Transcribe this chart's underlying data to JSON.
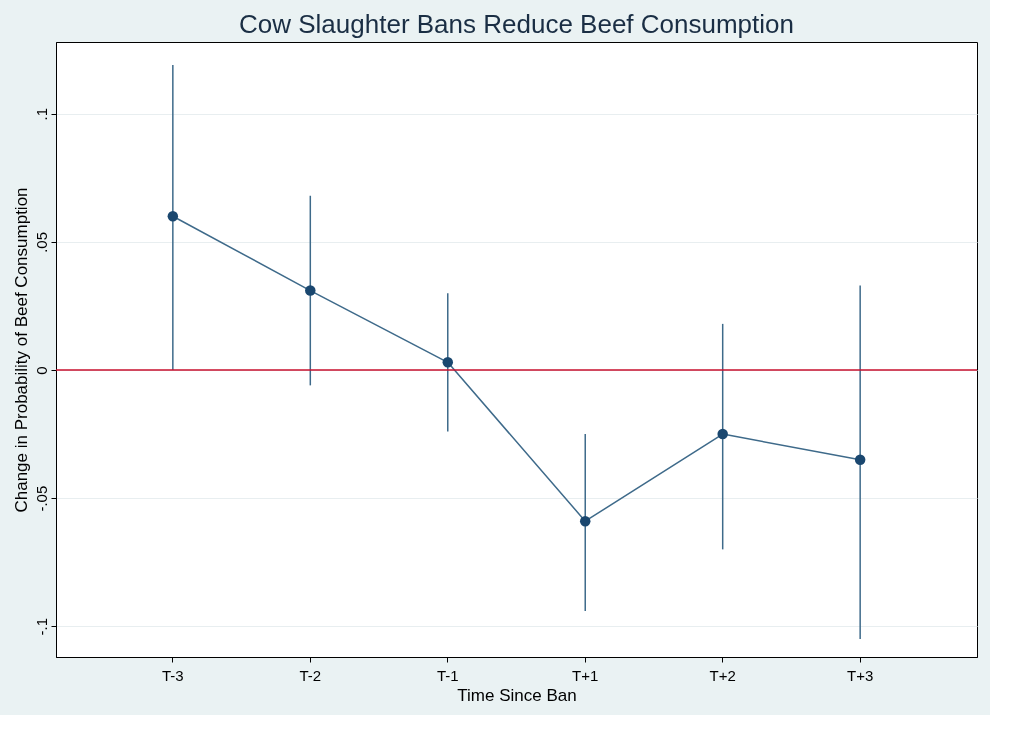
{
  "chart_data": {
    "type": "line",
    "title": "Cow Slaughter Bans Reduce Beef Consumption",
    "xlabel": "Time Since Ban",
    "ylabel": "Change in Probability of Beef Consumption",
    "categories": [
      "T-3",
      "T-2",
      "T-1",
      "T+1",
      "T+2",
      "T+3"
    ],
    "series": [
      {
        "color": "#3e6a8a",
        "values": [
          0.06,
          0.031,
          0.003,
          -0.059,
          -0.025,
          -0.035
        ],
        "errors": [
          [
            0.0,
            0.119
          ],
          [
            -0.006,
            0.068
          ],
          [
            -0.024,
            0.03
          ],
          [
            -0.094,
            -0.025
          ],
          [
            -0.07,
            0.018
          ],
          [
            -0.105,
            0.033
          ]
        ]
      }
    ],
    "ylim": [
      -0.112,
      0.128
    ],
    "yticks": [
      {
        "value": -0.1,
        "label": "-.1"
      },
      {
        "value": -0.05,
        "label": "-.05"
      },
      0,
      {
        "value": 0.05,
        "label": ".05"
      },
      {
        "value": 0.1,
        "label": ".1"
      }
    ],
    "ref_lines": [
      {
        "axis": "y",
        "value": 0,
        "color": "#c8102e"
      }
    ],
    "grid": "y",
    "marker": "circle",
    "line_style": "solid"
  }
}
